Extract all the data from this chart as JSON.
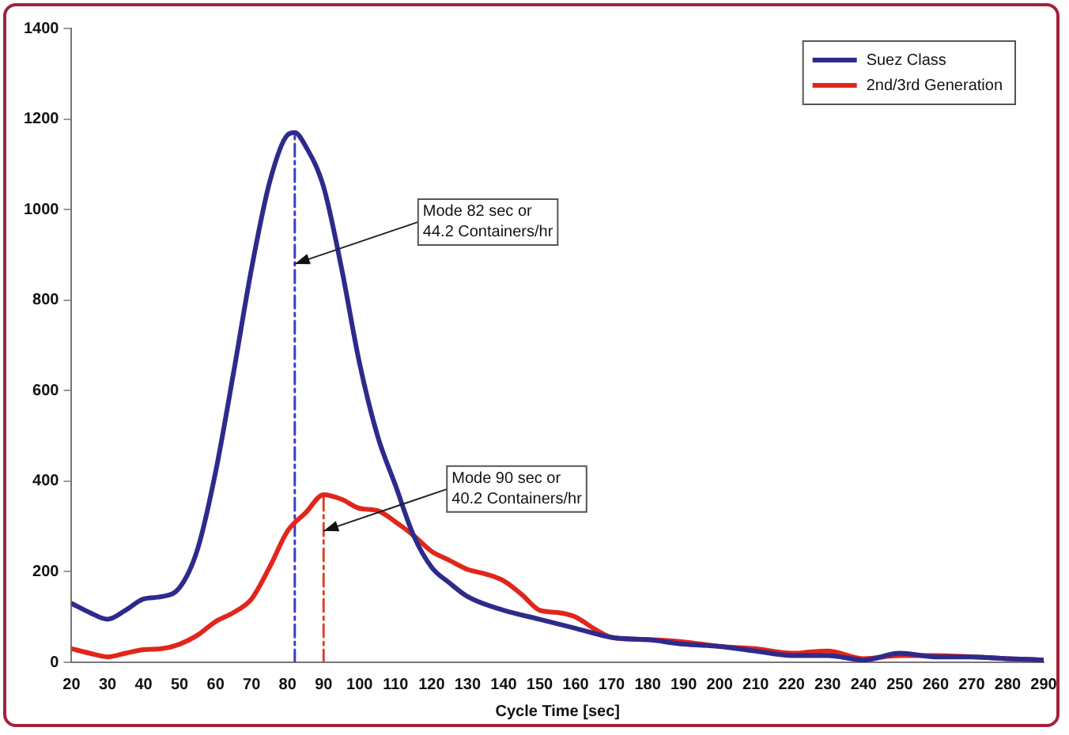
{
  "chart_data": {
    "type": "line",
    "xlabel": "Cycle Time [sec]",
    "xlim": [
      20,
      290
    ],
    "xticks": [
      20,
      30,
      40,
      50,
      60,
      70,
      80,
      90,
      100,
      110,
      120,
      130,
      140,
      150,
      160,
      170,
      180,
      190,
      200,
      210,
      220,
      230,
      240,
      250,
      260,
      270,
      280,
      290
    ],
    "ylim": [
      0,
      1400
    ],
    "yticks": [
      0,
      200,
      400,
      600,
      800,
      1000,
      1200,
      1400
    ],
    "grid": false,
    "legend": "top right",
    "marker": "none",
    "series": [
      {
        "name": "Suez Class",
        "color": "#2e2a8c",
        "x": [
          20,
          25,
          30,
          35,
          40,
          45,
          50,
          55,
          60,
          65,
          70,
          75,
          80,
          82,
          85,
          90,
          95,
          100,
          105,
          110,
          115,
          120,
          125,
          130,
          140,
          150,
          160,
          170,
          180,
          190,
          200,
          210,
          220,
          230,
          240,
          250,
          260,
          270,
          280,
          290
        ],
        "values": [
          130,
          110,
          95,
          115,
          140,
          145,
          165,
          250,
          420,
          640,
          870,
          1060,
          1165,
          1170,
          1140,
          1050,
          870,
          660,
          500,
          390,
          280,
          210,
          175,
          145,
          115,
          95,
          75,
          55,
          50,
          40,
          35,
          25,
          15,
          15,
          5,
          20,
          12,
          12,
          8,
          5
        ]
      },
      {
        "name": "2nd/3rd Generation",
        "color": "#e0261c",
        "x": [
          20,
          25,
          30,
          35,
          40,
          45,
          50,
          55,
          60,
          65,
          70,
          75,
          80,
          85,
          90,
          95,
          100,
          105,
          110,
          115,
          120,
          125,
          130,
          135,
          140,
          145,
          150,
          155,
          160,
          165,
          170,
          180,
          190,
          200,
          210,
          220,
          230,
          240,
          250,
          260,
          270,
          280,
          290
        ],
        "values": [
          30,
          20,
          12,
          20,
          28,
          30,
          40,
          60,
          90,
          110,
          140,
          210,
          290,
          330,
          370,
          360,
          340,
          335,
          310,
          280,
          245,
          225,
          205,
          195,
          180,
          150,
          115,
          110,
          100,
          75,
          55,
          50,
          45,
          35,
          30,
          20,
          25,
          8,
          15,
          15,
          12,
          8,
          5
        ]
      },
      {
        "type": "line",
        "color": "#3d3dbd",
        "line_style": "dashed",
        "x": [
          82,
          82
        ],
        "values": [
          0,
          1170
        ]
      },
      {
        "type": "line",
        "color": "#d9452a",
        "line_style": "dashed",
        "x": [
          90,
          90
        ],
        "values": [
          0,
          370
        ]
      }
    ],
    "annotations": [
      {
        "text": "Mode 82 sec or\n44.2 Containers/hr",
        "x": 82,
        "y": 880
      },
      {
        "text": "Mode 90 sec or\n40.2 Containers/hr",
        "x": 90,
        "y": 290
      }
    ]
  }
}
